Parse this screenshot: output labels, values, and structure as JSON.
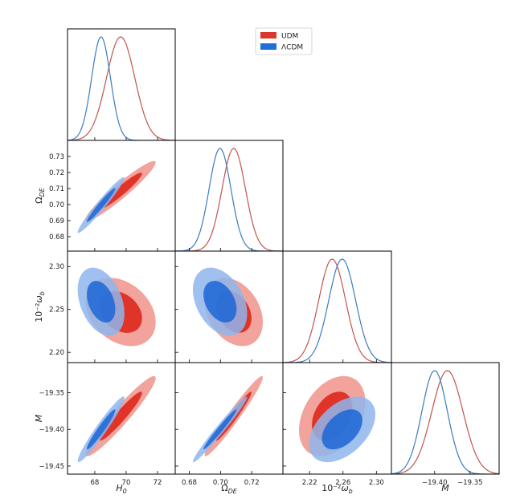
{
  "chart_data": {
    "type": "corner",
    "title": "",
    "grid": false,
    "legend": {
      "placement": "top-center",
      "entries": [
        {
          "name": "UDM",
          "color": "#d9382b"
        },
        {
          "name": "ΛCDM",
          "color": "#1f6fd8"
        }
      ]
    },
    "params": [
      {
        "id": "H0",
        "label": {
          "pre": "",
          "main": "H",
          "sub": "0"
        },
        "range": [
          66.26,
          73.13
        ],
        "xticks": [
          68,
          70,
          72
        ],
        "xtick_labels": [
          "68",
          "70",
          "72"
        ]
      },
      {
        "id": "OmegaDE",
        "label": {
          "pre": "",
          "main": "Ω",
          "sub": "DE"
        },
        "range": [
          0.671,
          0.74
        ],
        "xticks": [
          0.68,
          0.7,
          0.72
        ],
        "xtick_labels": [
          "0.68",
          "0.70",
          "0.72"
        ],
        "yticks": [
          0.68,
          0.69,
          0.7,
          0.71,
          0.72,
          0.73
        ],
        "ytick_labels": [
          "0.68",
          "0.69",
          "0.70",
          "0.71",
          "0.72",
          "0.73"
        ]
      },
      {
        "id": "omegab",
        "label": {
          "pre": "10⁻²",
          "main": "ω",
          "sub": "b"
        },
        "range": [
          2.188,
          2.318
        ],
        "xticks": [
          2.22,
          2.26,
          2.3
        ],
        "xtick_labels": [
          "2.22",
          "2.26",
          "2.30"
        ],
        "yticks": [
          2.2,
          2.25,
          2.3
        ],
        "ytick_labels": [
          "2.20",
          "2.25",
          "2.30"
        ]
      },
      {
        "id": "M",
        "label": {
          "pre": "",
          "main": "M",
          "sub": ""
        },
        "range": [
          -19.461,
          -19.309
        ],
        "xticks": [
          -19.4,
          -19.35
        ],
        "xtick_labels": [
          "−19.40",
          "−19.35"
        ],
        "yticks": [
          -19.35,
          -19.4,
          -19.45
        ],
        "ytick_labels": [
          "−19.35",
          "−19.40",
          "−19.45"
        ]
      }
    ],
    "contour_levels": [
      "68%",
      "95%"
    ],
    "series": [
      {
        "name": "UDM",
        "line_color": "#c4544c",
        "fill_dark": "#e03428",
        "fill_light": "#f1a39c",
        "mean": [
          69.65,
          0.7085,
          2.247,
          -19.382
        ],
        "sigma": [
          0.9,
          0.0075,
          0.016,
          0.022
        ],
        "corr": [
          [
            1,
            0.95,
            -0.3,
            0.95
          ],
          [
            0.95,
            1,
            -0.3,
            0.97
          ],
          [
            -0.3,
            -0.3,
            1,
            0.35
          ],
          [
            0.95,
            0.97,
            0.35,
            1
          ]
        ]
      },
      {
        "name": "ΛCDM",
        "line_color": "#3a7cc0",
        "fill_dark": "#1b66d6",
        "fill_light": "#8fb6ec",
        "mean": [
          68.4,
          0.6997,
          2.259,
          -19.4
        ],
        "sigma": [
          0.6,
          0.007,
          0.016,
          0.018
        ],
        "corr": [
          [
            1,
            0.97,
            -0.35,
            0.96
          ],
          [
            0.97,
            1,
            -0.35,
            0.98
          ],
          [
            -0.35,
            -0.35,
            1,
            0.45
          ],
          [
            0.96,
            0.98,
            0.45,
            1
          ]
        ]
      }
    ]
  }
}
